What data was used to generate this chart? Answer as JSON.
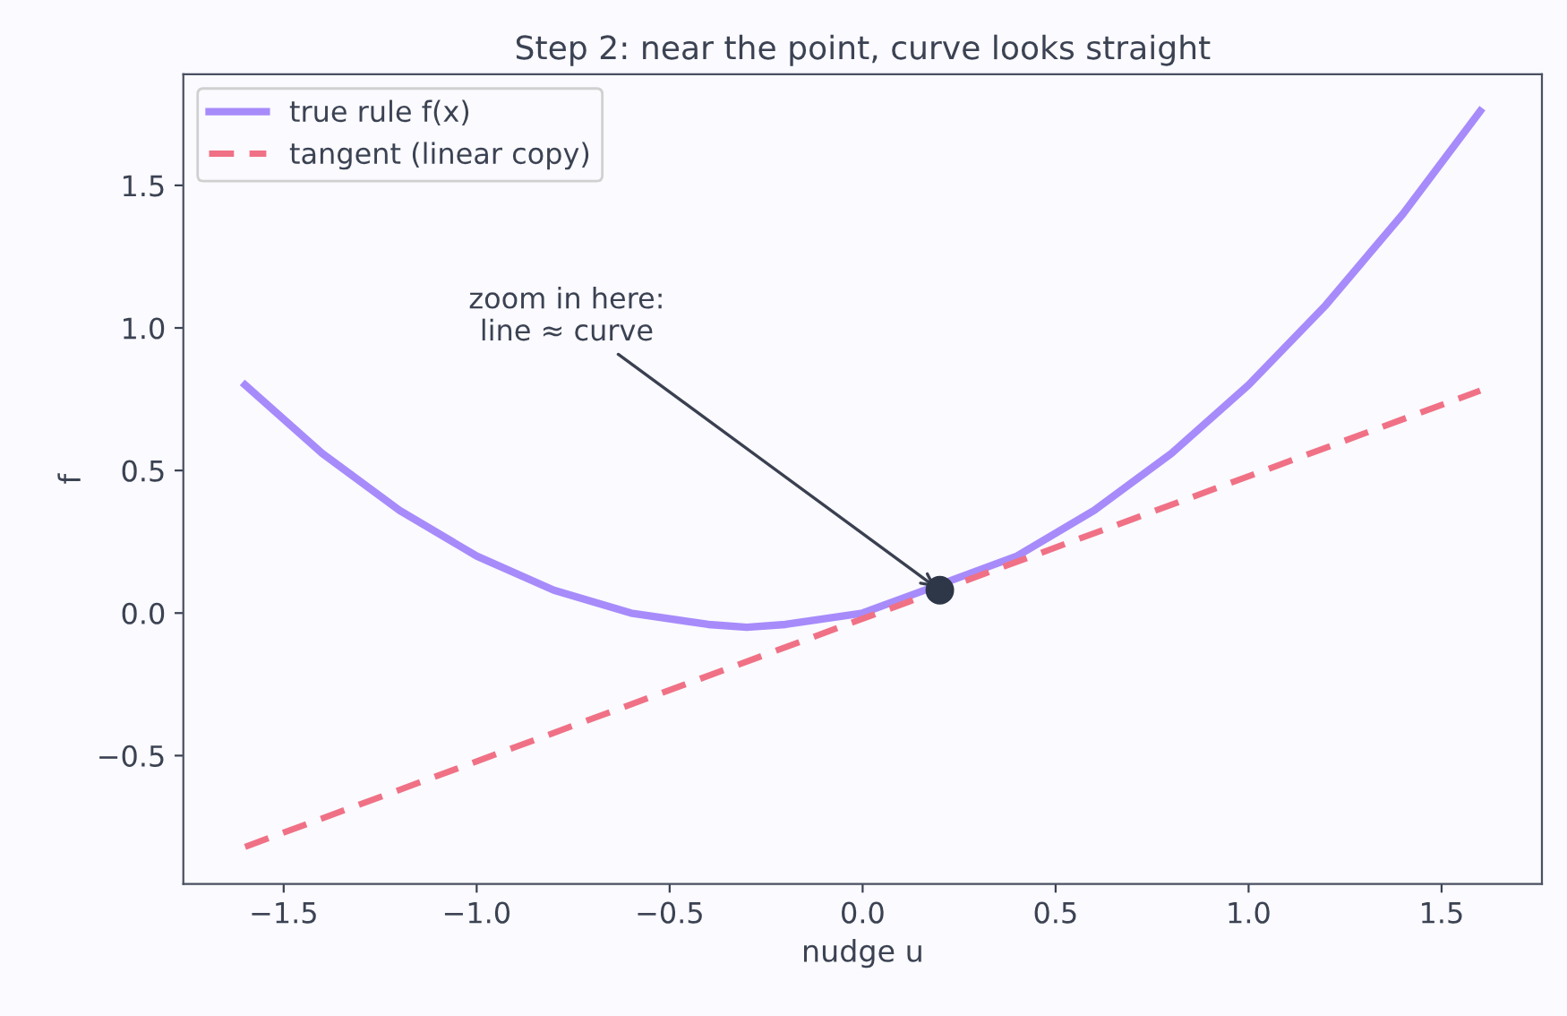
{
  "chart_data": {
    "type": "line",
    "title": "Step 2: near the point, curve looks straight",
    "xlabel": "nudge u",
    "ylabel": "f",
    "series": [
      {
        "name": "true rule f(x)",
        "color": "#a78bfa",
        "line_style": "solid",
        "x": [
          -1.6,
          -1.4,
          -1.2,
          -1.0,
          -0.8,
          -0.6,
          -0.4,
          -0.3,
          -0.2,
          0.0,
          0.4,
          0.6,
          0.8,
          1.0,
          1.2,
          1.4,
          1.6
        ],
        "values": [
          0.8,
          0.56,
          0.36,
          0.2,
          0.08,
          0.0,
          -0.04,
          -0.05,
          -0.04,
          0.0,
          0.2,
          0.36,
          0.56,
          0.8,
          1.08,
          1.4,
          1.76
        ]
      },
      {
        "name": "tangent (linear copy)",
        "color": "#f07185",
        "line_style": "dashed",
        "x": [
          -1.6,
          1.6
        ],
        "values": [
          -0.82,
          0.78
        ]
      },
      {
        "type": "scatter",
        "color": "#2d3748",
        "marker": "circle",
        "x": [
          0.2
        ],
        "values": [
          0.08
        ]
      }
    ],
    "annotations": [
      {
        "text": "zoom in here:\nline ≈ curve",
        "x": 0.2,
        "y": 0.08
      }
    ],
    "xlim": [
      -1.76,
      1.76
    ],
    "ylim": [
      -0.95,
      1.89
    ],
    "xticks": [
      {
        "value": -1.5,
        "label": "−1.5"
      },
      {
        "value": -1.0,
        "label": "−1.0"
      },
      {
        "value": -0.5,
        "label": "−0.5"
      },
      {
        "value": 0.0,
        "label": "0.0"
      },
      {
        "value": 0.5,
        "label": "0.5"
      },
      {
        "value": 1.0,
        "label": "1.0"
      },
      {
        "value": 1.5,
        "label": "1.5"
      }
    ],
    "yticks": [
      {
        "value": -0.5,
        "label": "−0.5"
      },
      {
        "value": 0.0,
        "label": "0.0"
      },
      {
        "value": 0.5,
        "label": "0.5"
      },
      {
        "value": 1.0,
        "label": "1.0"
      },
      {
        "value": 1.5,
        "label": "1.5"
      }
    ],
    "grid": false,
    "legend": "top left"
  }
}
